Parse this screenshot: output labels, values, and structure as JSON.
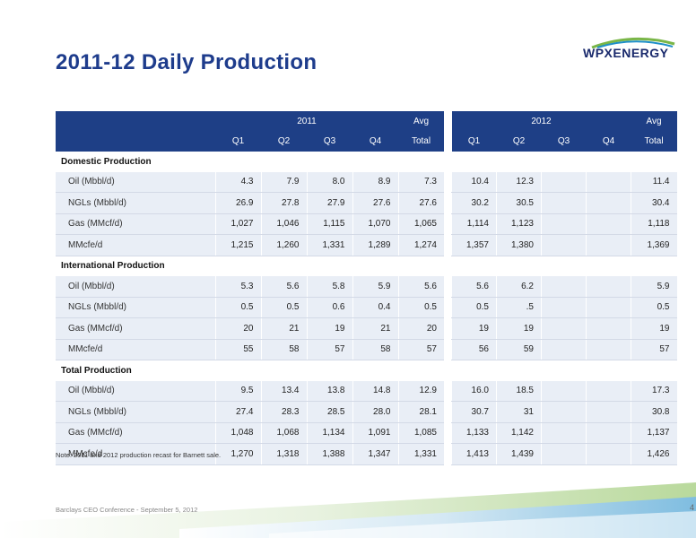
{
  "title": "2011-12 Daily Production",
  "logo": {
    "part1": "WPX",
    "part2": "ENERGY"
  },
  "header": {
    "year2011": "2011",
    "year2012": "2012",
    "avg": "Avg",
    "quarters": [
      "Q1",
      "Q2",
      "Q3",
      "Q4"
    ],
    "total": "Total"
  },
  "sections": [
    {
      "title": "Domestic Production",
      "rows": [
        {
          "label": "Oil (Mbbl/d)",
          "y2011": [
            "4.3",
            "7.9",
            "8.0",
            "8.9",
            "7.3"
          ],
          "y2012": [
            "10.4",
            "12.3",
            "",
            "",
            "11.4"
          ]
        },
        {
          "label": "NGLs (Mbbl/d)",
          "y2011": [
            "26.9",
            "27.8",
            "27.9",
            "27.6",
            "27.6"
          ],
          "y2012": [
            "30.2",
            "30.5",
            "",
            "",
            "30.4"
          ]
        },
        {
          "label": "Gas (MMcf/d)",
          "y2011": [
            "1,027",
            "1,046",
            "1,115",
            "1,070",
            "1,065"
          ],
          "y2012": [
            "1,114",
            "1,123",
            "",
            "",
            "1,118"
          ]
        },
        {
          "label": "MMcfe/d",
          "y2011": [
            "1,215",
            "1,260",
            "1,331",
            "1,289",
            "1,274"
          ],
          "y2012": [
            "1,357",
            "1,380",
            "",
            "",
            "1,369"
          ]
        }
      ]
    },
    {
      "title": "International Production",
      "rows": [
        {
          "label": "Oil (Mbbl/d)",
          "y2011": [
            "5.3",
            "5.6",
            "5.8",
            "5.9",
            "5.6"
          ],
          "y2012": [
            "5.6",
            "6.2",
            "",
            "",
            "5.9"
          ]
        },
        {
          "label": "NGLs (Mbbl/d)",
          "y2011": [
            "0.5",
            "0.5",
            "0.6",
            "0.4",
            "0.5"
          ],
          "y2012": [
            "0.5",
            ".5",
            "",
            "",
            "0.5"
          ]
        },
        {
          "label": "Gas (MMcf/d)",
          "y2011": [
            "20",
            "21",
            "19",
            "21",
            "20"
          ],
          "y2012": [
            "19",
            "19",
            "",
            "",
            "19"
          ]
        },
        {
          "label": "MMcfe/d",
          "y2011": [
            "55",
            "58",
            "57",
            "58",
            "57"
          ],
          "y2012": [
            "56",
            "59",
            "",
            "",
            "57"
          ]
        }
      ]
    },
    {
      "title": "Total Production",
      "rows": [
        {
          "label": "Oil (Mbbl/d)",
          "y2011": [
            "9.5",
            "13.4",
            "13.8",
            "14.8",
            "12.9"
          ],
          "y2012": [
            "16.0",
            "18.5",
            "",
            "",
            "17.3"
          ]
        },
        {
          "label": "NGLs (Mbbl/d)",
          "y2011": [
            "27.4",
            "28.3",
            "28.5",
            "28.0",
            "28.1"
          ],
          "y2012": [
            "30.7",
            "31",
            "",
            "",
            "30.8"
          ]
        },
        {
          "label": "Gas (MMcf/d)",
          "y2011": [
            "1,048",
            "1,068",
            "1,134",
            "1,091",
            "1,085"
          ],
          "y2012": [
            "1,133",
            "1,142",
            "",
            "",
            "1,137"
          ]
        },
        {
          "label": "MMcfe/d",
          "y2011": [
            "1,270",
            "1,318",
            "1,388",
            "1,347",
            "1,331"
          ],
          "y2012": [
            "1,413",
            "1,439",
            "",
            "",
            "1,426"
          ]
        }
      ]
    }
  ],
  "footnote": "Note: 2011 and 2012 production recast for Barnett sale.",
  "footer": "Barclays CEO Conference - September 5, 2012",
  "page_number": "4",
  "colors": {
    "header_bg": "#1e3f86",
    "title": "#1e3c8c",
    "row_shade": "#e9eef6"
  }
}
